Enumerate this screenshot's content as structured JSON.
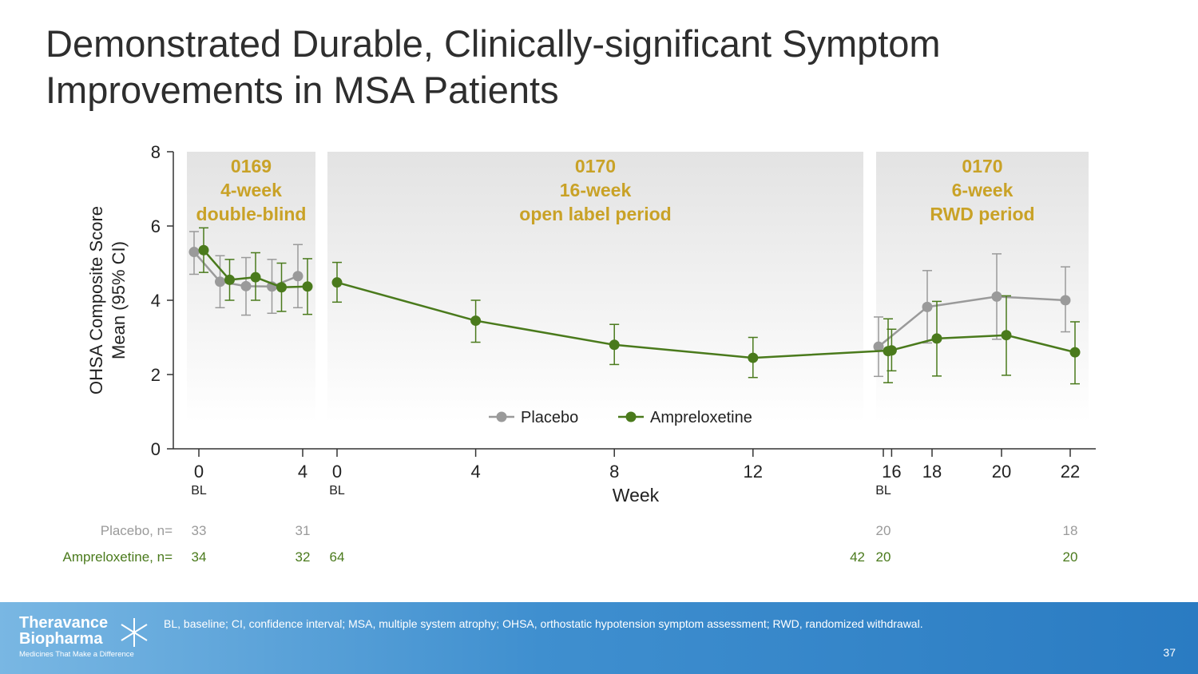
{
  "slide": {
    "title": "Demonstrated Durable, Clinically-significant Symptom Improvements in MSA Patients",
    "page_number": "37"
  },
  "chart_data": {
    "type": "line",
    "title": "",
    "ylabel_line1": "OHSA Composite Score",
    "ylabel_line2": "Mean (95% CI)",
    "xlabel": "Week",
    "ylim": [
      0,
      8
    ],
    "yticks": [
      0,
      2,
      4,
      6,
      8
    ],
    "grid": false,
    "legend_position": "bottom-center",
    "periods": [
      {
        "id": "p1",
        "lines": [
          "0169",
          "4-week",
          "double-blind"
        ]
      },
      {
        "id": "p2",
        "lines": [
          "0170",
          "16-week",
          "open label period"
        ]
      },
      {
        "id": "p3",
        "lines": [
          "0170",
          "6-week",
          "RWD period"
        ]
      }
    ],
    "xticks": [
      {
        "period": "p1",
        "week": 0,
        "label": "0",
        "sub": "BL"
      },
      {
        "period": "p1",
        "week": 4,
        "label": "4",
        "sub": ""
      },
      {
        "period": "p2",
        "week": 0,
        "label": "0",
        "sub": "BL"
      },
      {
        "period": "p2",
        "week": 4,
        "label": "4",
        "sub": ""
      },
      {
        "period": "p2",
        "week": 8,
        "label": "8",
        "sub": ""
      },
      {
        "period": "p2",
        "week": 12,
        "label": "12",
        "sub": ""
      },
      {
        "period": "p2",
        "week": 16,
        "label": "16",
        "sub": ""
      },
      {
        "period": "p3",
        "week": 16,
        "label": "",
        "sub": "BL"
      },
      {
        "period": "p3",
        "week": 18,
        "label": "18",
        "sub": ""
      },
      {
        "period": "p3",
        "week": 20,
        "label": "20",
        "sub": ""
      },
      {
        "period": "p3",
        "week": 22,
        "label": "22",
        "sub": ""
      }
    ],
    "series": [
      {
        "name": "Placebo",
        "color": "#9a9a9a",
        "segments": [
          {
            "period": "p1",
            "points": [
              {
                "x": 0,
                "y": 5.3,
                "lo": 4.7,
                "hi": 5.85
              },
              {
                "x": 1,
                "y": 4.5,
                "lo": 3.8,
                "hi": 5.2
              },
              {
                "x": 2,
                "y": 4.38,
                "lo": 3.6,
                "hi": 5.15
              },
              {
                "x": 3,
                "y": 4.37,
                "lo": 3.65,
                "hi": 5.1
              },
              {
                "x": 4,
                "y": 4.65,
                "lo": 3.8,
                "hi": 5.5
              }
            ]
          },
          {
            "period": "p3",
            "points": [
              {
                "x": 16,
                "y": 2.75,
                "lo": 1.95,
                "hi": 3.55
              },
              {
                "x": 18,
                "y": 3.82,
                "lo": 2.85,
                "hi": 4.8
              },
              {
                "x": 20,
                "y": 4.1,
                "lo": 2.95,
                "hi": 5.25
              },
              {
                "x": 22,
                "y": 4.0,
                "lo": 3.15,
                "hi": 4.9
              }
            ]
          }
        ]
      },
      {
        "name": "Ampreloxetine",
        "color": "#4a7a1c",
        "segments": [
          {
            "period": "p1",
            "points": [
              {
                "x": 0,
                "y": 5.35,
                "lo": 4.75,
                "hi": 5.95
              },
              {
                "x": 1,
                "y": 4.55,
                "lo": 4.0,
                "hi": 5.1
              },
              {
                "x": 2,
                "y": 4.62,
                "lo": 4.0,
                "hi": 5.28
              },
              {
                "x": 3,
                "y": 4.35,
                "lo": 3.7,
                "hi": 5.0
              },
              {
                "x": 4,
                "y": 4.37,
                "lo": 3.62,
                "hi": 5.12
              }
            ]
          },
          {
            "period": "p2",
            "points": [
              {
                "x": 0,
                "y": 4.48,
                "lo": 3.95,
                "hi": 5.02
              },
              {
                "x": 4,
                "y": 3.45,
                "lo": 2.87,
                "hi": 4.0
              },
              {
                "x": 8,
                "y": 2.8,
                "lo": 2.27,
                "hi": 3.35
              },
              {
                "x": 12,
                "y": 2.45,
                "lo": 1.92,
                "hi": 3.0
              },
              {
                "x": 16,
                "y": 2.65,
                "lo": 2.1,
                "hi": 3.22
              }
            ]
          },
          {
            "period": "p3",
            "points": [
              {
                "x": 16,
                "y": 2.63,
                "lo": 1.78,
                "hi": 3.5
              },
              {
                "x": 18,
                "y": 2.97,
                "lo": 1.96,
                "hi": 3.97
              },
              {
                "x": 20,
                "y": 3.06,
                "lo": 1.98,
                "hi": 4.12
              },
              {
                "x": 22,
                "y": 2.6,
                "lo": 1.75,
                "hi": 3.42
              }
            ]
          }
        ]
      }
    ],
    "n_table": [
      {
        "label": "Placebo, n=",
        "color": "#9a9a9a",
        "cells": [
          {
            "period": "p1",
            "week": 0,
            "value": "33"
          },
          {
            "period": "p1",
            "week": 4,
            "value": "31"
          },
          {
            "period": "p3",
            "week": 16,
            "value": "20"
          },
          {
            "period": "p3",
            "week": 22,
            "value": "18"
          }
        ]
      },
      {
        "label": "Ampreloxetine, n=",
        "color": "#4a7a1c",
        "cells": [
          {
            "period": "p1",
            "week": 0,
            "value": "34"
          },
          {
            "period": "p1",
            "week": 4,
            "value": "32"
          },
          {
            "period": "p2",
            "week": 0,
            "value": "64"
          },
          {
            "period": "p2",
            "week": 16,
            "value": "42"
          },
          {
            "period": "p3",
            "week": 16,
            "value": "20"
          },
          {
            "period": "p3",
            "week": 22,
            "value": "20"
          }
        ]
      }
    ]
  },
  "footer": {
    "logo_line1": "Theravance",
    "logo_line2": "Biopharma",
    "logo_tagline": "Medicines That Make a Difference",
    "footnote": "BL, baseline; CI, confidence interval; MSA, multiple system atrophy; OHSA, orthostatic hypotension symptom assessment; RWD, randomized withdrawal."
  },
  "colors": {
    "period_label": "#c9a227",
    "placebo": "#9a9a9a",
    "ampreloxetine": "#4a7a1c",
    "axis": "#333333"
  }
}
